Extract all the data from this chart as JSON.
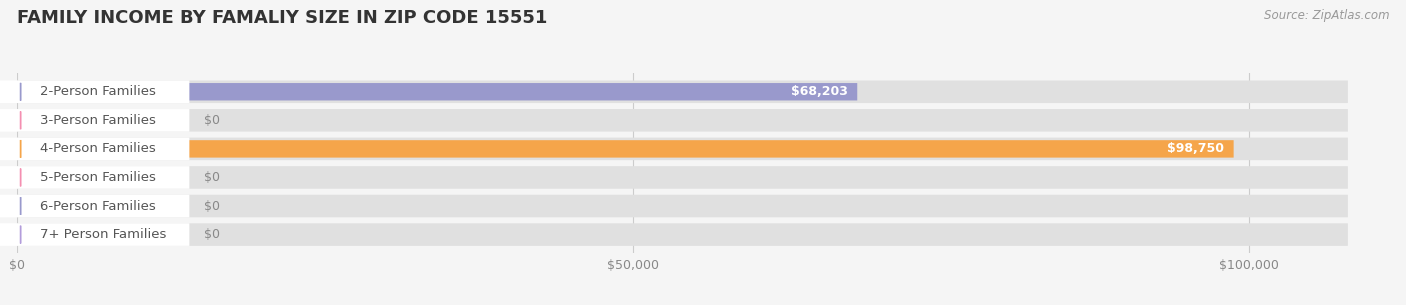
{
  "title": "FAMILY INCOME BY FAMALIY SIZE IN ZIP CODE 15551",
  "source": "Source: ZipAtlas.com",
  "categories": [
    "2-Person Families",
    "3-Person Families",
    "4-Person Families",
    "5-Person Families",
    "6-Person Families",
    "7+ Person Families"
  ],
  "values": [
    68203,
    0,
    98750,
    0,
    0,
    0
  ],
  "bar_colors": [
    "#9999cc",
    "#f48fb1",
    "#f5a54a",
    "#f48fb1",
    "#9999cc",
    "#b39ddb"
  ],
  "xlim": [
    0,
    110000
  ],
  "xticks": [
    0,
    50000,
    100000
  ],
  "xtick_labels": [
    "$0",
    "$50,000",
    "$100,000"
  ],
  "background_color": "#f5f5f5",
  "bar_bg_color": "#e0e0e0",
  "value_labels": [
    "$68,203",
    "$0",
    "$98,750",
    "$0",
    "$0",
    "$0"
  ],
  "title_fontsize": 13,
  "label_fontsize": 9.5,
  "value_fontsize": 9.0,
  "tick_fontsize": 9
}
